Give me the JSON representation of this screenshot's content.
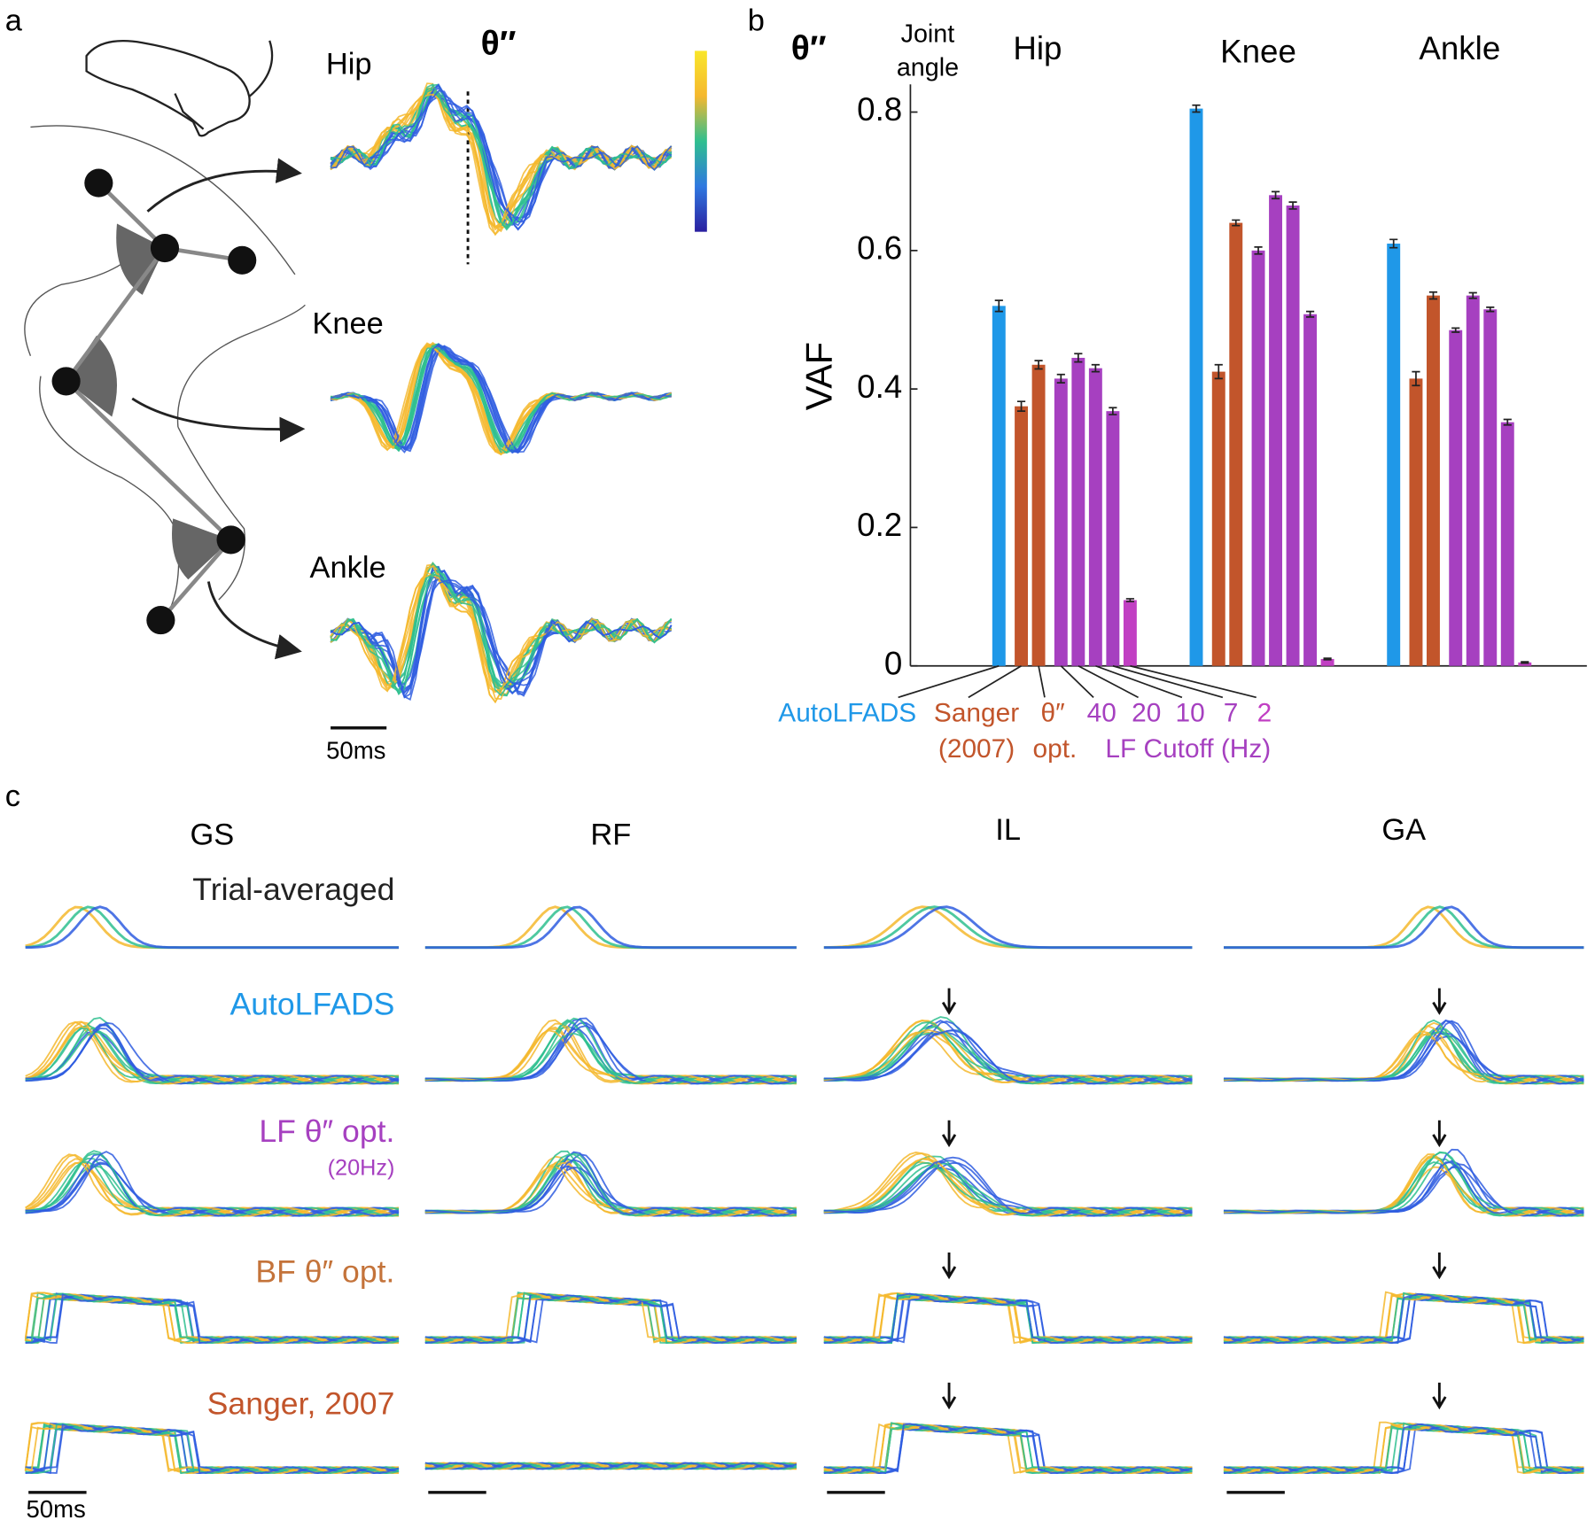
{
  "panel_a": {
    "label": "a",
    "title": "θ″",
    "rows": [
      "Hip",
      "Knee",
      "Ankle"
    ],
    "scale_bar": "50ms"
  },
  "chart_data": {
    "type": "bar",
    "panel_label": "b",
    "title": "θ″",
    "category_header": [
      "Joint",
      "angle"
    ],
    "categories": [
      "Hip",
      "Knee",
      "Ankle"
    ],
    "ylabel": "VAF",
    "ylim": [
      0,
      0.84
    ],
    "yticks": [
      0,
      0.2,
      0.4,
      0.6,
      0.8
    ],
    "series": [
      {
        "name": "AutoLFADS",
        "color": "#1f98e8",
        "values": [
          0.52,
          0.805,
          0.61
        ],
        "errors": [
          0.008,
          0.005,
          0.006
        ]
      },
      {
        "name": "Sanger",
        "color": "#c2552b",
        "values": [
          0.375,
          0.425,
          0.415
        ],
        "errors": [
          0.007,
          0.01,
          0.01
        ]
      },
      {
        "name": "θ″",
        "color": "#c2552b",
        "values": [
          0.435,
          0.64,
          0.535
        ],
        "errors": [
          0.006,
          0.004,
          0.005
        ]
      },
      {
        "name": "40",
        "color": "#a640c0",
        "values": [
          0.415,
          0.6,
          0.485
        ],
        "errors": [
          0.006,
          0.005,
          0.003
        ]
      },
      {
        "name": "20",
        "color": "#a640c0",
        "values": [
          0.445,
          0.68,
          0.535
        ],
        "errors": [
          0.006,
          0.005,
          0.004
        ]
      },
      {
        "name": "10",
        "color": "#a640c0",
        "values": [
          0.43,
          0.665,
          0.515
        ],
        "errors": [
          0.005,
          0.005,
          0.003
        ]
      },
      {
        "name": "7",
        "color": "#a640c0",
        "values": [
          0.368,
          0.508,
          0.352
        ],
        "errors": [
          0.005,
          0.004,
          0.004
        ]
      },
      {
        "name": "2",
        "color": "#c13fc3",
        "values": [
          0.095,
          0.01,
          0.005
        ],
        "errors": [
          0.002,
          0.001,
          0.001
        ]
      }
    ],
    "annotations": [
      "(2007)",
      "opt.",
      "LF Cutoff (Hz)"
    ]
  },
  "panel_c": {
    "label": "c",
    "columns": [
      "GS",
      "RF",
      "IL",
      "GA"
    ],
    "rows": [
      "Trial-averaged",
      "AutoLFADS",
      "LF θ″ opt.",
      "BF θ″ opt.",
      "Sanger, 2007"
    ],
    "note": "(20Hz)",
    "scale_bar": "50ms"
  }
}
